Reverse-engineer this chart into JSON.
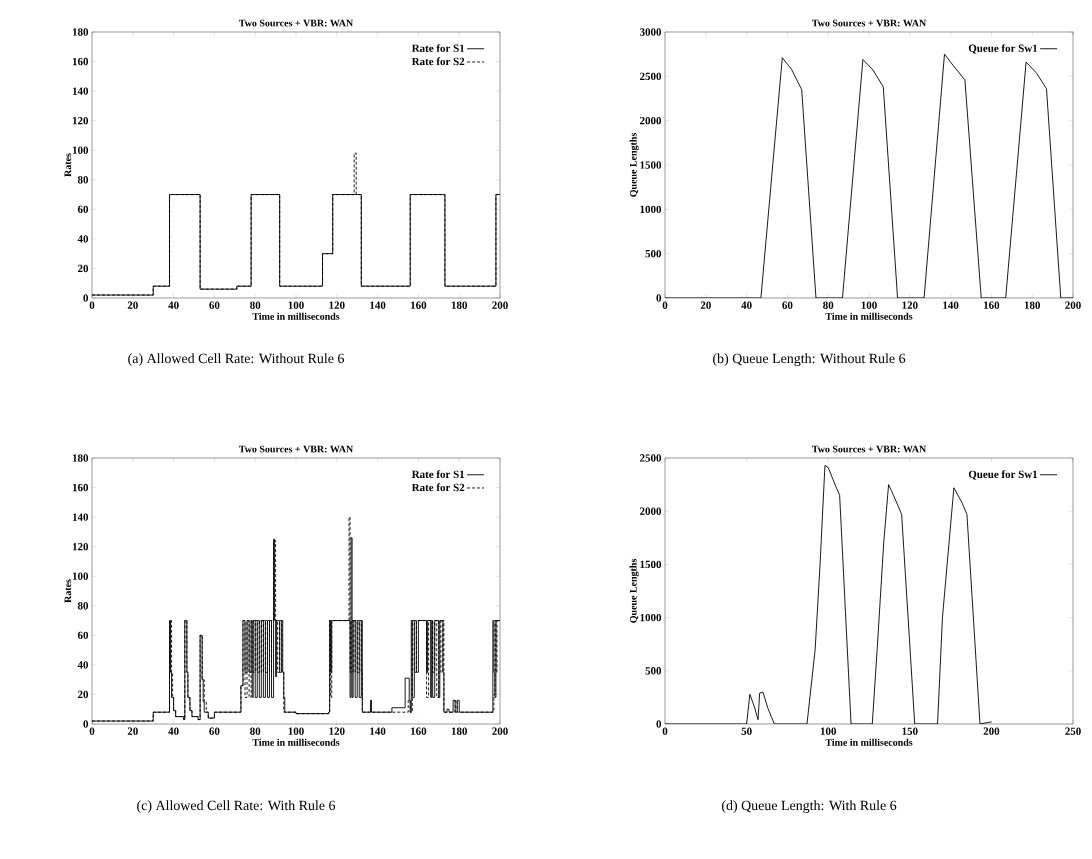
{
  "chart_data": [
    {
      "type": "step",
      "title": "Two Sources + VBR: WAN",
      "xlabel": "Time in milliseconds",
      "ylabel": "Rates",
      "xlim": [
        0,
        200
      ],
      "ylim": [
        0,
        180
      ],
      "xticks": [
        0,
        20,
        40,
        60,
        80,
        100,
        120,
        140,
        160,
        180,
        200
      ],
      "yticks": [
        0,
        20,
        40,
        60,
        80,
        100,
        120,
        140,
        160,
        180
      ],
      "legend": "top right",
      "annotations": [
        "(a) Allowed Cell Rate: Without Rule 6"
      ],
      "series": [
        {
          "name": "Rate for S1",
          "color": "#000000",
          "line_style": "solid",
          "x": [
            0,
            30,
            38,
            53,
            71,
            78,
            92,
            113,
            118,
            132,
            156,
            173,
            198,
            200
          ],
          "values": [
            2,
            8,
            70,
            6,
            8,
            70,
            8,
            30,
            70,
            8,
            70,
            8,
            70,
            70
          ]
        },
        {
          "name": "Rate for S2",
          "color": "#000000",
          "line_style": "dashed",
          "x": [
            0,
            30,
            38,
            53,
            71,
            78,
            92,
            113,
            118,
            128.5,
            129.5,
            132,
            156,
            173,
            198,
            200
          ],
          "values": [
            2,
            8,
            70,
            6,
            8,
            70,
            8,
            30,
            70,
            98,
            70,
            8,
            70,
            8,
            70,
            70
          ]
        }
      ]
    },
    {
      "type": "line",
      "title": "Two Sources + VBR: WAN",
      "xlabel": "Time in milliseconds",
      "ylabel": "Queue Lengths",
      "xlim": [
        0,
        200
      ],
      "ylim": [
        0,
        3000
      ],
      "xticks": [
        0,
        20,
        40,
        60,
        80,
        100,
        120,
        140,
        160,
        180,
        200
      ],
      "yticks": [
        0,
        500,
        1000,
        1500,
        2000,
        2500,
        3000
      ],
      "legend": "top right",
      "annotations": [
        "(b) Queue Length: Without Rule 6"
      ],
      "series": [
        {
          "name": "Queue for Sw1",
          "color": "#000000",
          "line_style": "solid",
          "x": [
            0,
            47,
            57.5,
            62,
            67,
            74,
            87,
            97,
            102,
            107,
            114,
            127,
            137,
            142,
            147,
            155,
            167,
            177,
            182,
            187,
            194,
            200
          ],
          "values": [
            0,
            0,
            2710,
            2580,
            2350,
            0,
            0,
            2690,
            2570,
            2380,
            0,
            0,
            2750,
            2600,
            2460,
            0,
            0,
            2660,
            2540,
            2360,
            0,
            0
          ]
        }
      ]
    },
    {
      "type": "step",
      "title": "Two Sources + VBR: WAN",
      "xlabel": "Time in milliseconds",
      "ylabel": "Rates",
      "xlim": [
        0,
        200
      ],
      "ylim": [
        0,
        180
      ],
      "xticks": [
        0,
        20,
        40,
        60,
        80,
        100,
        120,
        140,
        160,
        180,
        200
      ],
      "yticks": [
        0,
        20,
        40,
        60,
        80,
        100,
        120,
        140,
        160,
        180
      ],
      "legend": "top right",
      "annotations": [
        "(c) Allowed Cell Rate: With Rule 6"
      ],
      "series": [
        {
          "name": "Rate for S1",
          "color": "#000000",
          "line_style": "solid",
          "x": [
            0,
            30,
            38,
            38.5,
            39,
            40,
            41,
            44,
            45,
            45.5,
            46.5,
            47,
            48,
            49,
            52,
            53,
            54,
            54.5,
            55,
            57,
            60,
            73,
            74,
            75,
            76,
            77,
            78,
            78.5,
            79,
            80,
            81,
            82,
            83,
            84,
            85,
            86,
            87,
            88,
            89,
            89.5,
            90,
            90.5,
            92,
            93,
            93.5,
            94,
            94.5,
            100,
            116,
            116.5,
            117,
            117.5,
            126,
            126.5,
            127,
            127.5,
            128,
            129,
            130,
            131,
            132,
            132.5,
            136,
            136.5,
            137,
            147,
            153,
            153.5,
            155,
            155.5,
            156,
            156.5,
            157,
            158,
            159,
            160,
            164,
            164.5,
            166,
            166.5,
            167,
            168,
            170,
            170.5,
            172,
            172.5,
            174,
            175,
            177,
            178,
            179,
            180,
            196,
            196.5,
            197,
            197.5,
            198,
            200
          ],
          "values": [
            2,
            8,
            70,
            35,
            18,
            9,
            5,
            5,
            3,
            70,
            35,
            18,
            9,
            5,
            3,
            60,
            30,
            15,
            8,
            4,
            8,
            26,
            70,
            35,
            70,
            35,
            70,
            18,
            70,
            18,
            70,
            18,
            70,
            18,
            70,
            18,
            70,
            18,
            125,
            70,
            32,
            70,
            35,
            70,
            35,
            18,
            8,
            7,
            8,
            70,
            35,
            70,
            70,
            18,
            126,
            18,
            70,
            18,
            70,
            18,
            70,
            8,
            8,
            16,
            8,
            11,
            11,
            31,
            31,
            16,
            8,
            70,
            18,
            70,
            35,
            70,
            35,
            70,
            18,
            70,
            18,
            70,
            18,
            70,
            35,
            8,
            10,
            8,
            16,
            8,
            16,
            8,
            8,
            70,
            35,
            18,
            70,
            70
          ]
        },
        {
          "name": "Rate for S2",
          "color": "#000000",
          "line_style": "dashed",
          "x": [
            0,
            30,
            38,
            39,
            39.5,
            40,
            41,
            44,
            45,
            45.5,
            46.5,
            47,
            48,
            49,
            52,
            53,
            54,
            55,
            56,
            57,
            60,
            73,
            74,
            75,
            76,
            77,
            78,
            79,
            80,
            81,
            82,
            83,
            84,
            85,
            86,
            87,
            88,
            89,
            90,
            91,
            92,
            93,
            94,
            100,
            116,
            116.5,
            117,
            117.5,
            125.5,
            126,
            126.5,
            127,
            128,
            129,
            130,
            131,
            132,
            132.5,
            147,
            153,
            155,
            156,
            157,
            158,
            159,
            163,
            164,
            165,
            167,
            168,
            169,
            170,
            171,
            172,
            172.5,
            178,
            179,
            196,
            197,
            197.5,
            198,
            198.5,
            200
          ],
          "values": [
            2,
            8,
            70,
            35,
            18,
            9,
            5,
            5,
            3,
            70,
            35,
            18,
            9,
            5,
            3,
            60,
            30,
            15,
            8,
            4,
            8,
            26,
            70,
            18,
            70,
            18,
            70,
            35,
            70,
            35,
            70,
            35,
            70,
            35,
            70,
            35,
            70,
            124,
            70,
            35,
            70,
            35,
            8,
            7,
            8,
            70,
            18,
            70,
            70,
            140,
            35,
            70,
            35,
            70,
            35,
            70,
            35,
            8,
            8,
            8,
            16,
            8,
            70,
            35,
            70,
            70,
            18,
            70,
            35,
            70,
            18,
            70,
            35,
            70,
            8,
            16,
            8,
            8,
            20,
            70,
            35,
            70,
            70
          ]
        }
      ]
    },
    {
      "type": "line",
      "title": "Two Sources + VBR: WAN",
      "xlabel": "Time in milliseconds",
      "ylabel": "Queue Lengths",
      "xlim": [
        0,
        250
      ],
      "ylim": [
        0,
        2500
      ],
      "xticks": [
        0,
        50,
        100,
        150,
        200,
        250
      ],
      "yticks": [
        0,
        500,
        1000,
        1500,
        2000,
        2500
      ],
      "legend": "top right",
      "annotations": [
        "(d) Queue Length: With Rule 6"
      ],
      "series": [
        {
          "name": "Queue for Sw1",
          "color": "#000000",
          "line_style": "solid",
          "x": [
            0,
            50,
            52,
            55,
            57,
            58,
            60,
            63,
            67,
            87,
            92,
            95,
            98,
            100,
            105,
            107,
            114,
            127,
            130,
            134,
            137,
            140,
            145,
            153,
            167,
            170,
            177,
            182,
            185,
            193,
            200
          ],
          "values": [
            0,
            0,
            280,
            150,
            40,
            290,
            300,
            150,
            0,
            0,
            700,
            1500,
            2430,
            2410,
            2220,
            2150,
            0,
            0,
            700,
            1700,
            2250,
            2150,
            1970,
            0,
            0,
            1000,
            2220,
            2080,
            1970,
            0,
            20
          ]
        }
      ]
    }
  ]
}
